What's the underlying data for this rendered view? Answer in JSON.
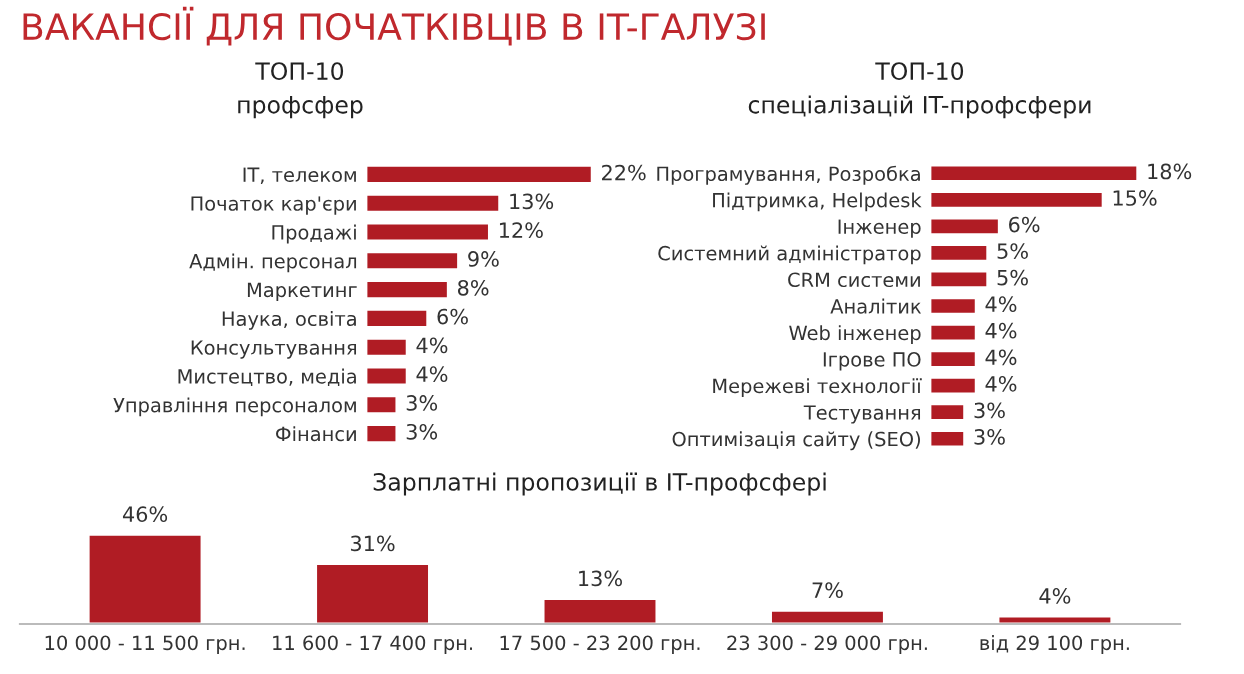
{
  "chart_data": [
    {
      "type": "bar",
      "orientation": "horizontal",
      "title": "ВАКАНСІЇ ДЛЯ ПОЧАТКІВЦІВ В IT-ГАЛУЗІ",
      "subtitle": "ТОП-10\nпрофсфер",
      "color": "#b01c24",
      "categories": [
        "IT, телеком",
        "Початок кар'єри",
        "Продажі",
        "Адмін. персонал",
        "Маркетинг",
        "Наука, освіта",
        "Консультування",
        "Мистецтво, медіа",
        "Управління персоналом",
        "Фінанси"
      ],
      "values": [
        22,
        13,
        12,
        9,
        8,
        6,
        4,
        4,
        3,
        3
      ],
      "value_labels": [
        "22%",
        "13%",
        "12%",
        "9%",
        "8%",
        "6%",
        "4%",
        "4%",
        "3%",
        "3%"
      ]
    },
    {
      "type": "bar",
      "orientation": "horizontal",
      "title": "ТОП-10\nспеціалізацій IT-профсфери",
      "color": "#b01c24",
      "categories": [
        "Програмування, Розробка",
        "Підтримка, Helpdesk",
        "Інженер",
        "Системний адміністратор",
        "CRM системи",
        "Аналітик",
        "Web інженер",
        "Ігрове ПО",
        "Мережеві технології",
        "Тестування",
        "Оптимізація сайту (SEO)"
      ],
      "values": [
        18,
        15,
        6,
        5,
        5,
        4,
        4,
        4,
        4,
        3,
        3
      ],
      "value_labels": [
        "18%",
        "15%",
        "6%",
        "5%",
        "5%",
        "4%",
        "4%",
        "4%",
        "4%",
        "3%",
        "3%"
      ]
    },
    {
      "type": "bar",
      "title": "Зарплатні пропозиції в IT-профсфері",
      "color": "#b01c24",
      "categories": [
        "10 000 - 11 500 грн.",
        "11 600 - 17 400 грн.",
        "17 500 - 23 200 грн.",
        "23 300 - 29 000 грн.",
        "від 29 100 грн."
      ],
      "values": [
        46,
        31,
        13,
        7,
        4
      ],
      "value_labels": [
        "46%",
        "31%",
        "13%",
        "7%",
        "4%"
      ]
    }
  ]
}
